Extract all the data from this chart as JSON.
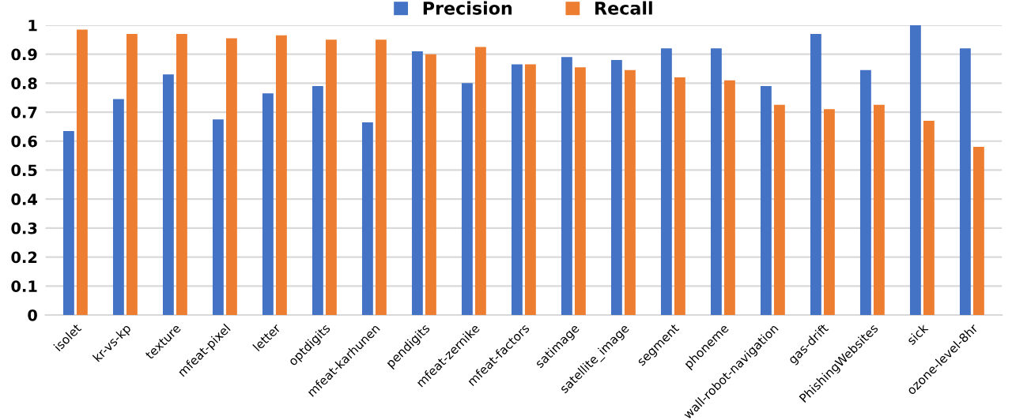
{
  "chart_data": {
    "type": "bar",
    "categories": [
      "isolet",
      "kr-vs-kp",
      "texture",
      "mfeat-pixel",
      "letter",
      "optdigits",
      "mfeat-karhunen",
      "pendigits",
      "mfeat-zernike",
      "mfeat-factors",
      "satimage",
      "satellite_image",
      "segment",
      "phoneme",
      "wall-robot-navigation",
      "gas-drift",
      "PhishingWebsites",
      "sick",
      "ozone-level-8hr"
    ],
    "series": [
      {
        "name": "Precision",
        "color": "#4472c4",
        "values": [
          0.635,
          0.745,
          0.83,
          0.675,
          0.765,
          0.79,
          0.665,
          0.91,
          0.8,
          0.865,
          0.89,
          0.88,
          0.92,
          0.92,
          0.79,
          0.97,
          0.845,
          1.0,
          0.92
        ]
      },
      {
        "name": "Recall",
        "color": "#ed7d31",
        "values": [
          0.985,
          0.97,
          0.97,
          0.955,
          0.965,
          0.95,
          0.95,
          0.9,
          0.925,
          0.865,
          0.855,
          0.845,
          0.82,
          0.81,
          0.725,
          0.71,
          0.725,
          0.67,
          0.58
        ]
      }
    ],
    "ylim": [
      0,
      1
    ],
    "yticks": [
      0,
      0.1,
      0.2,
      0.3,
      0.4,
      0.5,
      0.6,
      0.7,
      0.8,
      0.9,
      1
    ],
    "grid": "y",
    "legend": "top"
  }
}
